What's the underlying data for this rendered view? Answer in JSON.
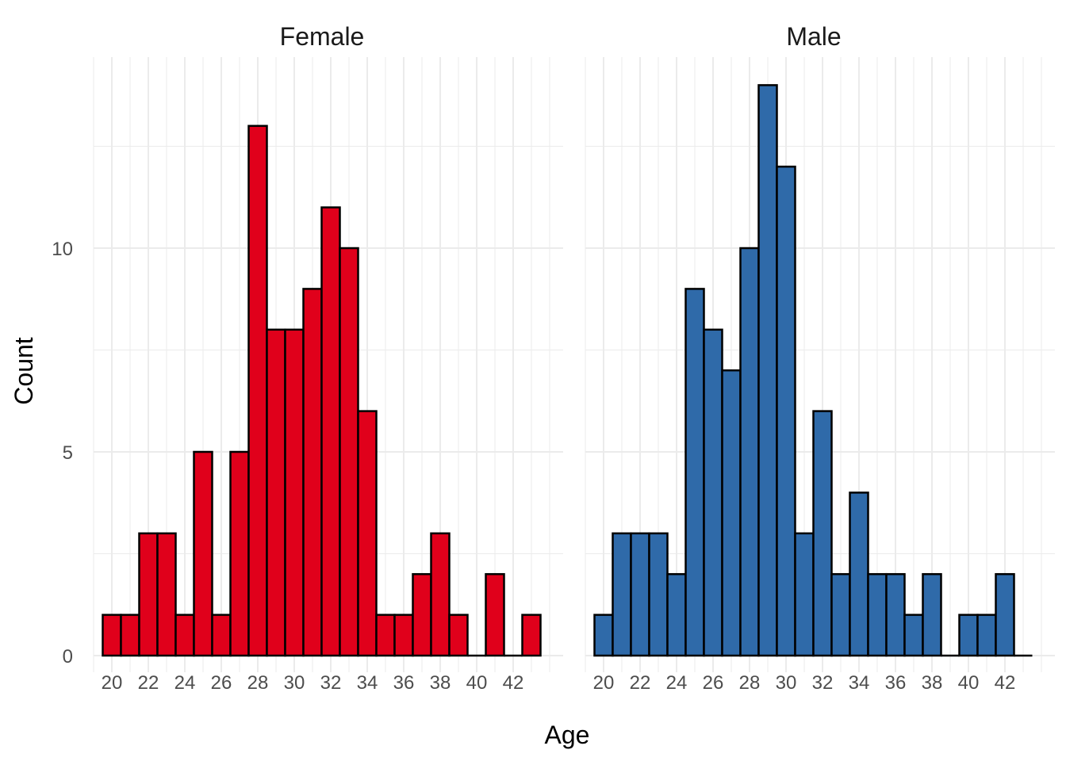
{
  "chart_data": {
    "type": "bar",
    "subtype": "faceted-histogram",
    "xlabel": "Age",
    "ylabel": "Count",
    "x_ticks": [
      20,
      22,
      24,
      26,
      28,
      30,
      32,
      34,
      36,
      38,
      40,
      42
    ],
    "y_ticks": [
      0,
      5,
      10
    ],
    "xlim": [
      19,
      44
    ],
    "ylim": [
      0,
      14
    ],
    "grid": true,
    "bin_width": 1,
    "facets": [
      {
        "label": "Female",
        "fill_color": "#e0001b",
        "bins_start": 19.5,
        "counts": [
          1,
          1,
          3,
          3,
          1,
          5,
          1,
          5,
          13,
          8,
          8,
          9,
          11,
          10,
          6,
          1,
          1,
          2,
          3,
          1,
          0,
          2,
          0,
          1
        ]
      },
      {
        "label": "Male",
        "fill_color": "#2f6aa9",
        "bins_start": 19.5,
        "counts": [
          1,
          3,
          3,
          3,
          2,
          9,
          8,
          7,
          10,
          14,
          12,
          3,
          6,
          2,
          4,
          2,
          2,
          1,
          2,
          0,
          1,
          1,
          2,
          0
        ]
      }
    ]
  }
}
